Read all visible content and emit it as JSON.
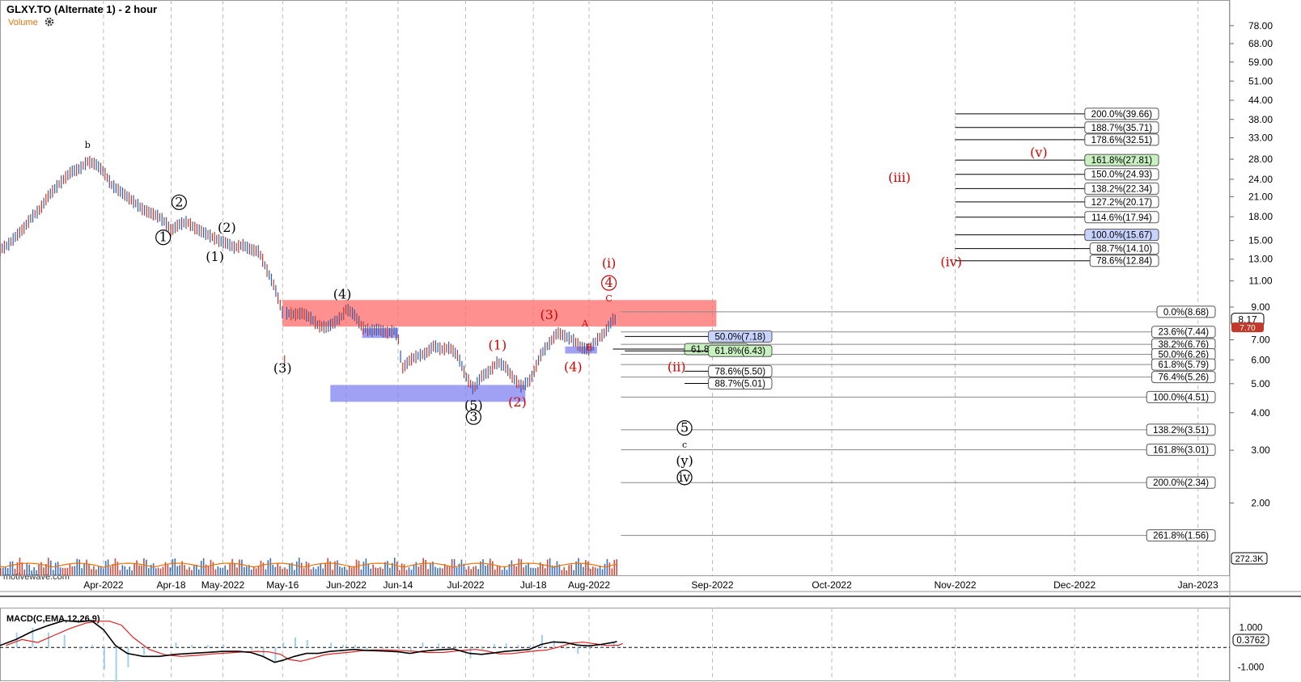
{
  "header": {
    "title": "GLXY.TO (Alternate 1) - 2 hour",
    "volume_label": "Volume",
    "watermark": "motivewave.com"
  },
  "macd_header": "MACD(C,EMA,12,26,9)",
  "colors": {
    "up": "#2f5fae",
    "down": "#c0392b",
    "red_zone": "#ff6b6b",
    "blue_zone": "#8080f0",
    "label_red": "#d40000",
    "volume": "#e8750a"
  },
  "chart_data": {
    "type": "line",
    "scale": "log",
    "ylim": [
      1.3,
      95
    ],
    "y_ticks": [
      "78.00",
      "68.00",
      "59.00",
      "51.00",
      "44.00",
      "38.00",
      "33.00",
      "28.00",
      "24.00",
      "21.00",
      "18.00",
      "15.00",
      "13.00",
      "11.00",
      "9.00",
      "7.00",
      "6.00",
      "5.00",
      "4.00",
      "3.00",
      "2.00"
    ],
    "y_tick_values": [
      78,
      68,
      59,
      51,
      44,
      38,
      33,
      28,
      24,
      21,
      18,
      15,
      13,
      11,
      9,
      7,
      6,
      5,
      4,
      3,
      2
    ],
    "x_ticks": [
      "Apr-2022",
      "Apr-18",
      "May-2022",
      "May-16",
      "Jun-2022",
      "Jun-14",
      "Jul-2022",
      "Jul-18",
      "Aug-2022",
      "Sep-2022",
      "Oct-2022",
      "Nov-2022",
      "Dec-2022",
      "Jan-2023"
    ],
    "x_tick_days": [
      0,
      17,
      30,
      45,
      61,
      74,
      91,
      108,
      122,
      153,
      183,
      214,
      244,
      275
    ],
    "xlim_days": [
      -26,
      283
    ],
    "last_price": "8.17",
    "last_price_alt": "7.70",
    "volume_readout": "272.3K",
    "price_path": [
      [
        -26,
        14.0
      ],
      [
        -24,
        14.5
      ],
      [
        -22,
        15.5
      ],
      [
        -20,
        16.5
      ],
      [
        -18,
        18.0
      ],
      [
        -16,
        19.0
      ],
      [
        -14,
        21.0
      ],
      [
        -12,
        22.5
      ],
      [
        -10,
        24.0
      ],
      [
        -8,
        25.5
      ],
      [
        -6,
        26.0
      ],
      [
        -4,
        27.5
      ],
      [
        -2,
        27.0
      ],
      [
        0,
        25.5
      ],
      [
        2,
        23.0
      ],
      [
        4,
        22.0
      ],
      [
        6,
        21.0
      ],
      [
        8,
        20.0
      ],
      [
        10,
        19.0
      ],
      [
        12,
        18.5
      ],
      [
        14,
        18.0
      ],
      [
        16,
        17.0
      ],
      [
        17,
        16.2
      ],
      [
        19,
        17.0
      ],
      [
        21,
        17.3
      ],
      [
        23,
        16.5
      ],
      [
        25,
        16.0
      ],
      [
        27,
        15.5
      ],
      [
        29,
        15.0
      ],
      [
        31,
        14.7
      ],
      [
        33,
        14.2
      ],
      [
        35,
        14.5
      ],
      [
        37,
        14.0
      ],
      [
        39,
        13.8
      ],
      [
        41,
        12.0
      ],
      [
        43,
        10.5
      ],
      [
        44,
        9.5
      ],
      [
        45,
        8.6
      ],
      [
        45.5,
        6.0
      ],
      [
        46,
        8.6
      ],
      [
        48,
        8.5
      ],
      [
        50,
        8.6
      ],
      [
        52,
        8.3
      ],
      [
        54,
        7.8
      ],
      [
        56,
        7.7
      ],
      [
        58,
        8.0
      ],
      [
        60,
        8.4
      ],
      [
        61,
        8.9
      ],
      [
        63,
        8.5
      ],
      [
        65,
        7.7
      ],
      [
        67,
        7.5
      ],
      [
        69,
        7.6
      ],
      [
        71,
        7.4
      ],
      [
        73,
        7.5
      ],
      [
        74,
        7.2
      ],
      [
        75,
        5.6
      ],
      [
        77,
        6.0
      ],
      [
        79,
        6.2
      ],
      [
        81,
        6.3
      ],
      [
        83,
        6.7
      ],
      [
        85,
        6.5
      ],
      [
        87,
        6.6
      ],
      [
        89,
        6.2
      ],
      [
        91,
        5.3
      ],
      [
        93,
        4.8
      ],
      [
        95,
        5.3
      ],
      [
        97,
        5.5
      ],
      [
        99,
        5.9
      ],
      [
        101,
        5.7
      ],
      [
        103,
        5.2
      ],
      [
        105,
        4.9
      ],
      [
        107,
        5.1
      ],
      [
        108,
        5.4
      ],
      [
        110,
        6.3
      ],
      [
        112,
        6.8
      ],
      [
        114,
        7.4
      ],
      [
        116,
        7.2
      ],
      [
        118,
        7.0
      ],
      [
        120,
        6.6
      ],
      [
        122,
        6.5
      ],
      [
        124,
        7.0
      ],
      [
        126,
        7.4
      ],
      [
        128,
        8.2
      ],
      [
        129,
        8.17
      ]
    ],
    "macd_path": [
      [
        -26,
        0.1
      ],
      [
        -22,
        0.4
      ],
      [
        -18,
        0.8
      ],
      [
        -14,
        1.1
      ],
      [
        -10,
        1.35
      ],
      [
        -6,
        1.3
      ],
      [
        -3,
        1.35
      ],
      [
        0,
        0.9
      ],
      [
        3,
        0.1
      ],
      [
        6,
        -0.3
      ],
      [
        10,
        -0.45
      ],
      [
        14,
        -0.45
      ],
      [
        18,
        -0.35
      ],
      [
        22,
        -0.3
      ],
      [
        26,
        -0.25
      ],
      [
        30,
        -0.2
      ],
      [
        34,
        -0.2
      ],
      [
        37,
        -0.25
      ],
      [
        40,
        -0.45
      ],
      [
        43,
        -0.75
      ],
      [
        45,
        -0.65
      ],
      [
        48,
        -0.45
      ],
      [
        51,
        -0.3
      ],
      [
        54,
        -0.3
      ],
      [
        57,
        -0.2
      ],
      [
        60,
        -0.15
      ],
      [
        63,
        -0.1
      ],
      [
        66,
        -0.15
      ],
      [
        70,
        -0.18
      ],
      [
        74,
        -0.22
      ],
      [
        77,
        -0.3
      ],
      [
        80,
        -0.2
      ],
      [
        84,
        -0.12
      ],
      [
        88,
        -0.08
      ],
      [
        92,
        -0.3
      ],
      [
        95,
        -0.35
      ],
      [
        98,
        -0.28
      ],
      [
        101,
        -0.2
      ],
      [
        104,
        -0.15
      ],
      [
        107,
        -0.1
      ],
      [
        110,
        0.15
      ],
      [
        113,
        0.28
      ],
      [
        116,
        0.25
      ],
      [
        119,
        0.12
      ],
      [
        122,
        0.08
      ],
      [
        125,
        0.15
      ],
      [
        128,
        0.25
      ],
      [
        129,
        0.3
      ]
    ],
    "macd_ticks": [
      "1.000",
      "0.3762",
      "-1.000"
    ],
    "macd_tick_values": [
      1.0,
      0.3762,
      -1.0
    ],
    "macd_ylim": [
      -1.5,
      1.6
    ],
    "zones": [
      {
        "name": "red-resistance",
        "color": "#ff6b6b",
        "x0": 45,
        "x1": 154,
        "y0": 7.75,
        "y1": 9.5
      },
      {
        "name": "blue-support-1",
        "color": "#8080f0",
        "x0": 65,
        "x1": 74,
        "y0": 7.1,
        "y1": 7.65
      },
      {
        "name": "blue-support-2",
        "color": "#8080f0",
        "x0": 57,
        "x1": 106,
        "y0": 4.35,
        "y1": 4.95
      },
      {
        "name": "blue-support-3",
        "color": "#8080f0",
        "x0": 116,
        "x1": 124,
        "y0": 6.3,
        "y1": 6.65
      }
    ],
    "fib_levels": [
      {
        "label": "200.0%(39.66)",
        "value": 39.66,
        "x0": 214,
        "style": "plain"
      },
      {
        "label": "188.7%(35.71)",
        "value": 35.71,
        "x0": 214,
        "style": "plain"
      },
      {
        "label": "178.6%(32.51)",
        "value": 32.51,
        "x0": 214,
        "style": "plain"
      },
      {
        "label": "161.8%(27.81)",
        "value": 27.81,
        "x0": 214,
        "style": "green"
      },
      {
        "label": "150.0%(24.93)",
        "value": 24.93,
        "x0": 214,
        "style": "plain"
      },
      {
        "label": "138.2%(22.34)",
        "value": 22.34,
        "x0": 214,
        "style": "plain"
      },
      {
        "label": "127.2%(20.17)",
        "value": 20.17,
        "x0": 214,
        "style": "plain"
      },
      {
        "label": "114.6%(17.94)",
        "value": 17.94,
        "x0": 214,
        "style": "plain"
      },
      {
        "label": "100.0%(15.67)",
        "value": 15.67,
        "x0": 214,
        "style": "blue"
      },
      {
        "label": "88.7%(14.10)",
        "value": 14.1,
        "x0": 214,
        "style": "plain"
      },
      {
        "label": "78.6%(12.84)",
        "value": 12.84,
        "x0": 214,
        "style": "plain"
      },
      {
        "label": "0.0%(8.68)",
        "value": 8.68,
        "x0": 130,
        "style": "plain"
      },
      {
        "label": "23.6%(7.44)",
        "value": 7.44,
        "x0": 130,
        "style": "plain"
      },
      {
        "label": "38.2%(6.76)",
        "value": 6.76,
        "x0": 130,
        "style": "plain"
      },
      {
        "label": "50.0%(6.26)",
        "value": 6.26,
        "x0": 130,
        "style": "plain"
      },
      {
        "label": "61.8%(5.79)",
        "value": 5.79,
        "x0": 130,
        "style": "plain"
      },
      {
        "label": "76.4%(5.26)",
        "value": 5.26,
        "x0": 130,
        "style": "plain"
      },
      {
        "label": "100.0%(4.51)",
        "value": 4.51,
        "x0": 130,
        "style": "plain"
      },
      {
        "label": "138.2%(3.51)",
        "value": 3.51,
        "x0": 130,
        "style": "plain"
      },
      {
        "label": "161.8%(3.01)",
        "value": 3.01,
        "x0": 130,
        "style": "plain"
      },
      {
        "label": "200.0%(2.34)",
        "value": 2.34,
        "x0": 130,
        "style": "plain"
      },
      {
        "label": "261.8%(1.56)",
        "value": 1.56,
        "x0": 130,
        "style": "plain"
      }
    ],
    "inner_fibs": [
      {
        "label": "50.0%(7.18)",
        "value": 7.18,
        "x0": 131,
        "x1": 152,
        "style": "blue"
      },
      {
        "label": "61.8%(6.52)",
        "value": 6.52,
        "x0": 128,
        "x1": 146,
        "style": "green"
      },
      {
        "label": "61.8%(6.43)",
        "value": 6.43,
        "x0": 131,
        "x1": 152,
        "style": "green"
      },
      {
        "label": "78.6%(5.50)",
        "value": 5.5,
        "x0": 146,
        "x1": 152,
        "style": "plain"
      },
      {
        "label": "88.7%(5.01)",
        "value": 5.01,
        "x0": 146,
        "x1": 152,
        "style": "plain"
      }
    ],
    "wave_labels": [
      {
        "text": "b",
        "day": -4,
        "price": 30.5,
        "color": "#000",
        "circle": false,
        "small": true
      },
      {
        "text": "2",
        "day": 19,
        "price": 19.5,
        "color": "#000",
        "circle": true
      },
      {
        "text": "1",
        "day": 15,
        "price": 14.9,
        "color": "#000",
        "circle": true
      },
      {
        "text": "(2)",
        "day": 31,
        "price": 16.0,
        "color": "#000",
        "circle": false
      },
      {
        "text": "(1)",
        "day": 28,
        "price": 12.8,
        "color": "#000",
        "circle": false
      },
      {
        "text": "(4)",
        "day": 60,
        "price": 9.6,
        "color": "#000",
        "circle": false
      },
      {
        "text": "(3)",
        "day": 45,
        "price": 5.45,
        "color": "#000",
        "circle": false
      },
      {
        "text": "(5)",
        "day": 93,
        "price": 4.1,
        "color": "#000",
        "circle": false
      },
      {
        "text": "3",
        "day": 93,
        "price": 3.75,
        "color": "#000",
        "circle": true
      },
      {
        "text": "(1)",
        "day": 99,
        "price": 6.5,
        "color": "#d40000",
        "circle": false
      },
      {
        "text": "(2)",
        "day": 104,
        "price": 4.2,
        "color": "#d40000",
        "circle": false
      },
      {
        "text": "(3)",
        "day": 112,
        "price": 8.2,
        "color": "#d40000",
        "circle": false
      },
      {
        "text": "(4)",
        "day": 118,
        "price": 5.5,
        "color": "#d40000",
        "circle": false
      },
      {
        "text": "A",
        "day": 121,
        "price": 7.75,
        "color": "#d40000",
        "circle": false,
        "small": true
      },
      {
        "text": "B",
        "day": 122,
        "price": 6.45,
        "color": "#d40000",
        "circle": false,
        "small": true
      },
      {
        "text": "C",
        "day": 127,
        "price": 9.4,
        "color": "#d40000",
        "circle": false,
        "small": true
      },
      {
        "text": "(i)",
        "day": 127,
        "price": 12.2,
        "color": "#d40000",
        "circle": false
      },
      {
        "text": "4",
        "day": 127,
        "price": 10.5,
        "color": "#d40000",
        "circle": true
      },
      {
        "text": "(ii)",
        "day": 144,
        "price": 5.5,
        "color": "#d40000",
        "circle": false
      },
      {
        "text": "5",
        "day": 146,
        "price": 3.45,
        "color": "#000",
        "circle": true
      },
      {
        "text": "c",
        "day": 146,
        "price": 3.06,
        "color": "#000",
        "circle": false,
        "small": true
      },
      {
        "text": "(y)",
        "day": 146,
        "price": 2.68,
        "color": "#000",
        "circle": false
      },
      {
        "text": "iv",
        "day": 146,
        "price": 2.36,
        "color": "#000",
        "circle": true
      },
      {
        "text": "(iii)",
        "day": 200,
        "price": 23.5,
        "color": "#d40000",
        "circle": false
      },
      {
        "text": "(v)",
        "day": 235,
        "price": 28.5,
        "color": "#d40000",
        "circle": false
      },
      {
        "text": "(iv)",
        "day": 213,
        "price": 12.3,
        "color": "#d40000",
        "circle": false
      }
    ]
  }
}
